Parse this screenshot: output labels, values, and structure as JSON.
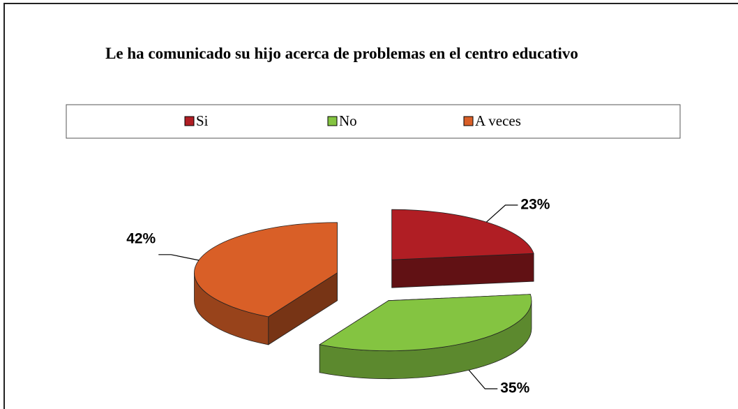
{
  "chart_data": {
    "type": "pie3d",
    "title": "Le ha comunicado su hijo acerca de problemas en el centro educativo",
    "categories": [
      "Si",
      "No",
      "A veces"
    ],
    "values": [
      23,
      35,
      42
    ],
    "value_labels": [
      "23%",
      "35%",
      "42%"
    ],
    "colors": [
      "#b01e24",
      "#84c441",
      "#d95f27"
    ],
    "legend": "top"
  }
}
